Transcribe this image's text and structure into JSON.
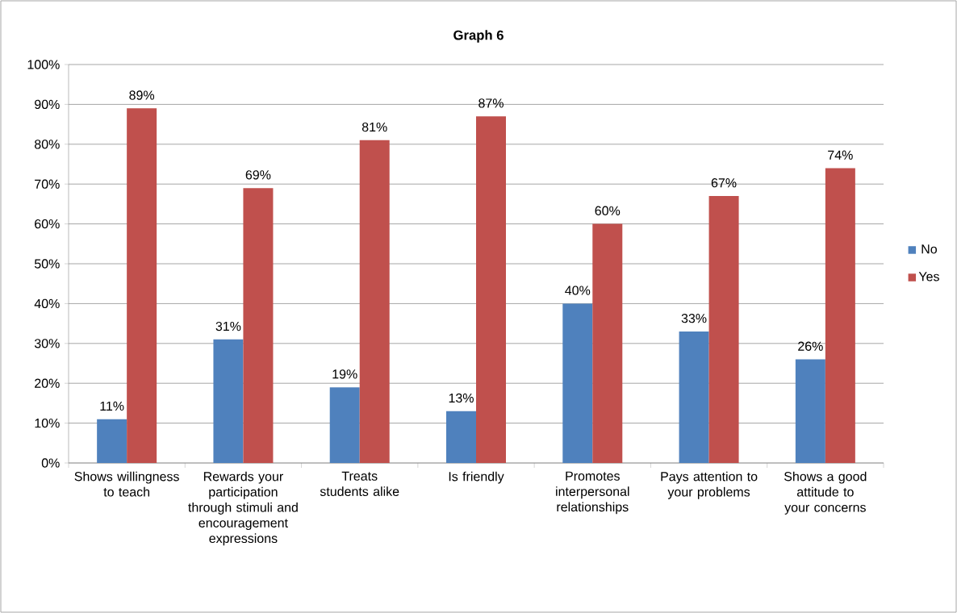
{
  "chart_data": {
    "type": "bar",
    "title": "Graph 6",
    "categories": [
      "Shows willingness to teach",
      "Rewards your participation through stimuli and encouragement expressions",
      "Treats students alike",
      "Is friendly",
      "Promotes interpersonal relationships",
      "Pays attention to your problems",
      "Shows a good attitude to your concerns"
    ],
    "series": [
      {
        "name": "No",
        "color": "#4f81bd",
        "values": [
          11,
          31,
          19,
          13,
          40,
          33,
          26
        ],
        "value_labels": [
          "11%",
          "31%",
          "19%",
          "13%",
          "40%",
          "33%",
          "26%"
        ]
      },
      {
        "name": "Yes",
        "color": "#c0504d",
        "values": [
          89,
          69,
          81,
          87,
          60,
          67,
          74
        ],
        "value_labels": [
          "89%",
          "69%",
          "81%",
          "87%",
          "60%",
          "67%",
          "74%"
        ]
      }
    ],
    "ylim": [
      0,
      100
    ],
    "yticks": [
      {
        "value": 0,
        "label": "0%"
      },
      {
        "value": 10,
        "label": "10%"
      },
      {
        "value": 20,
        "label": "20%"
      },
      {
        "value": 30,
        "label": "30%"
      },
      {
        "value": 40,
        "label": "40%"
      },
      {
        "value": 50,
        "label": "50%"
      },
      {
        "value": 60,
        "label": "60%"
      },
      {
        "value": 70,
        "label": "70%"
      },
      {
        "value": 80,
        "label": "80%"
      },
      {
        "value": 90,
        "label": "90%"
      },
      {
        "value": 100,
        "label": "100%"
      }
    ],
    "grid": "y",
    "legend": "right"
  }
}
